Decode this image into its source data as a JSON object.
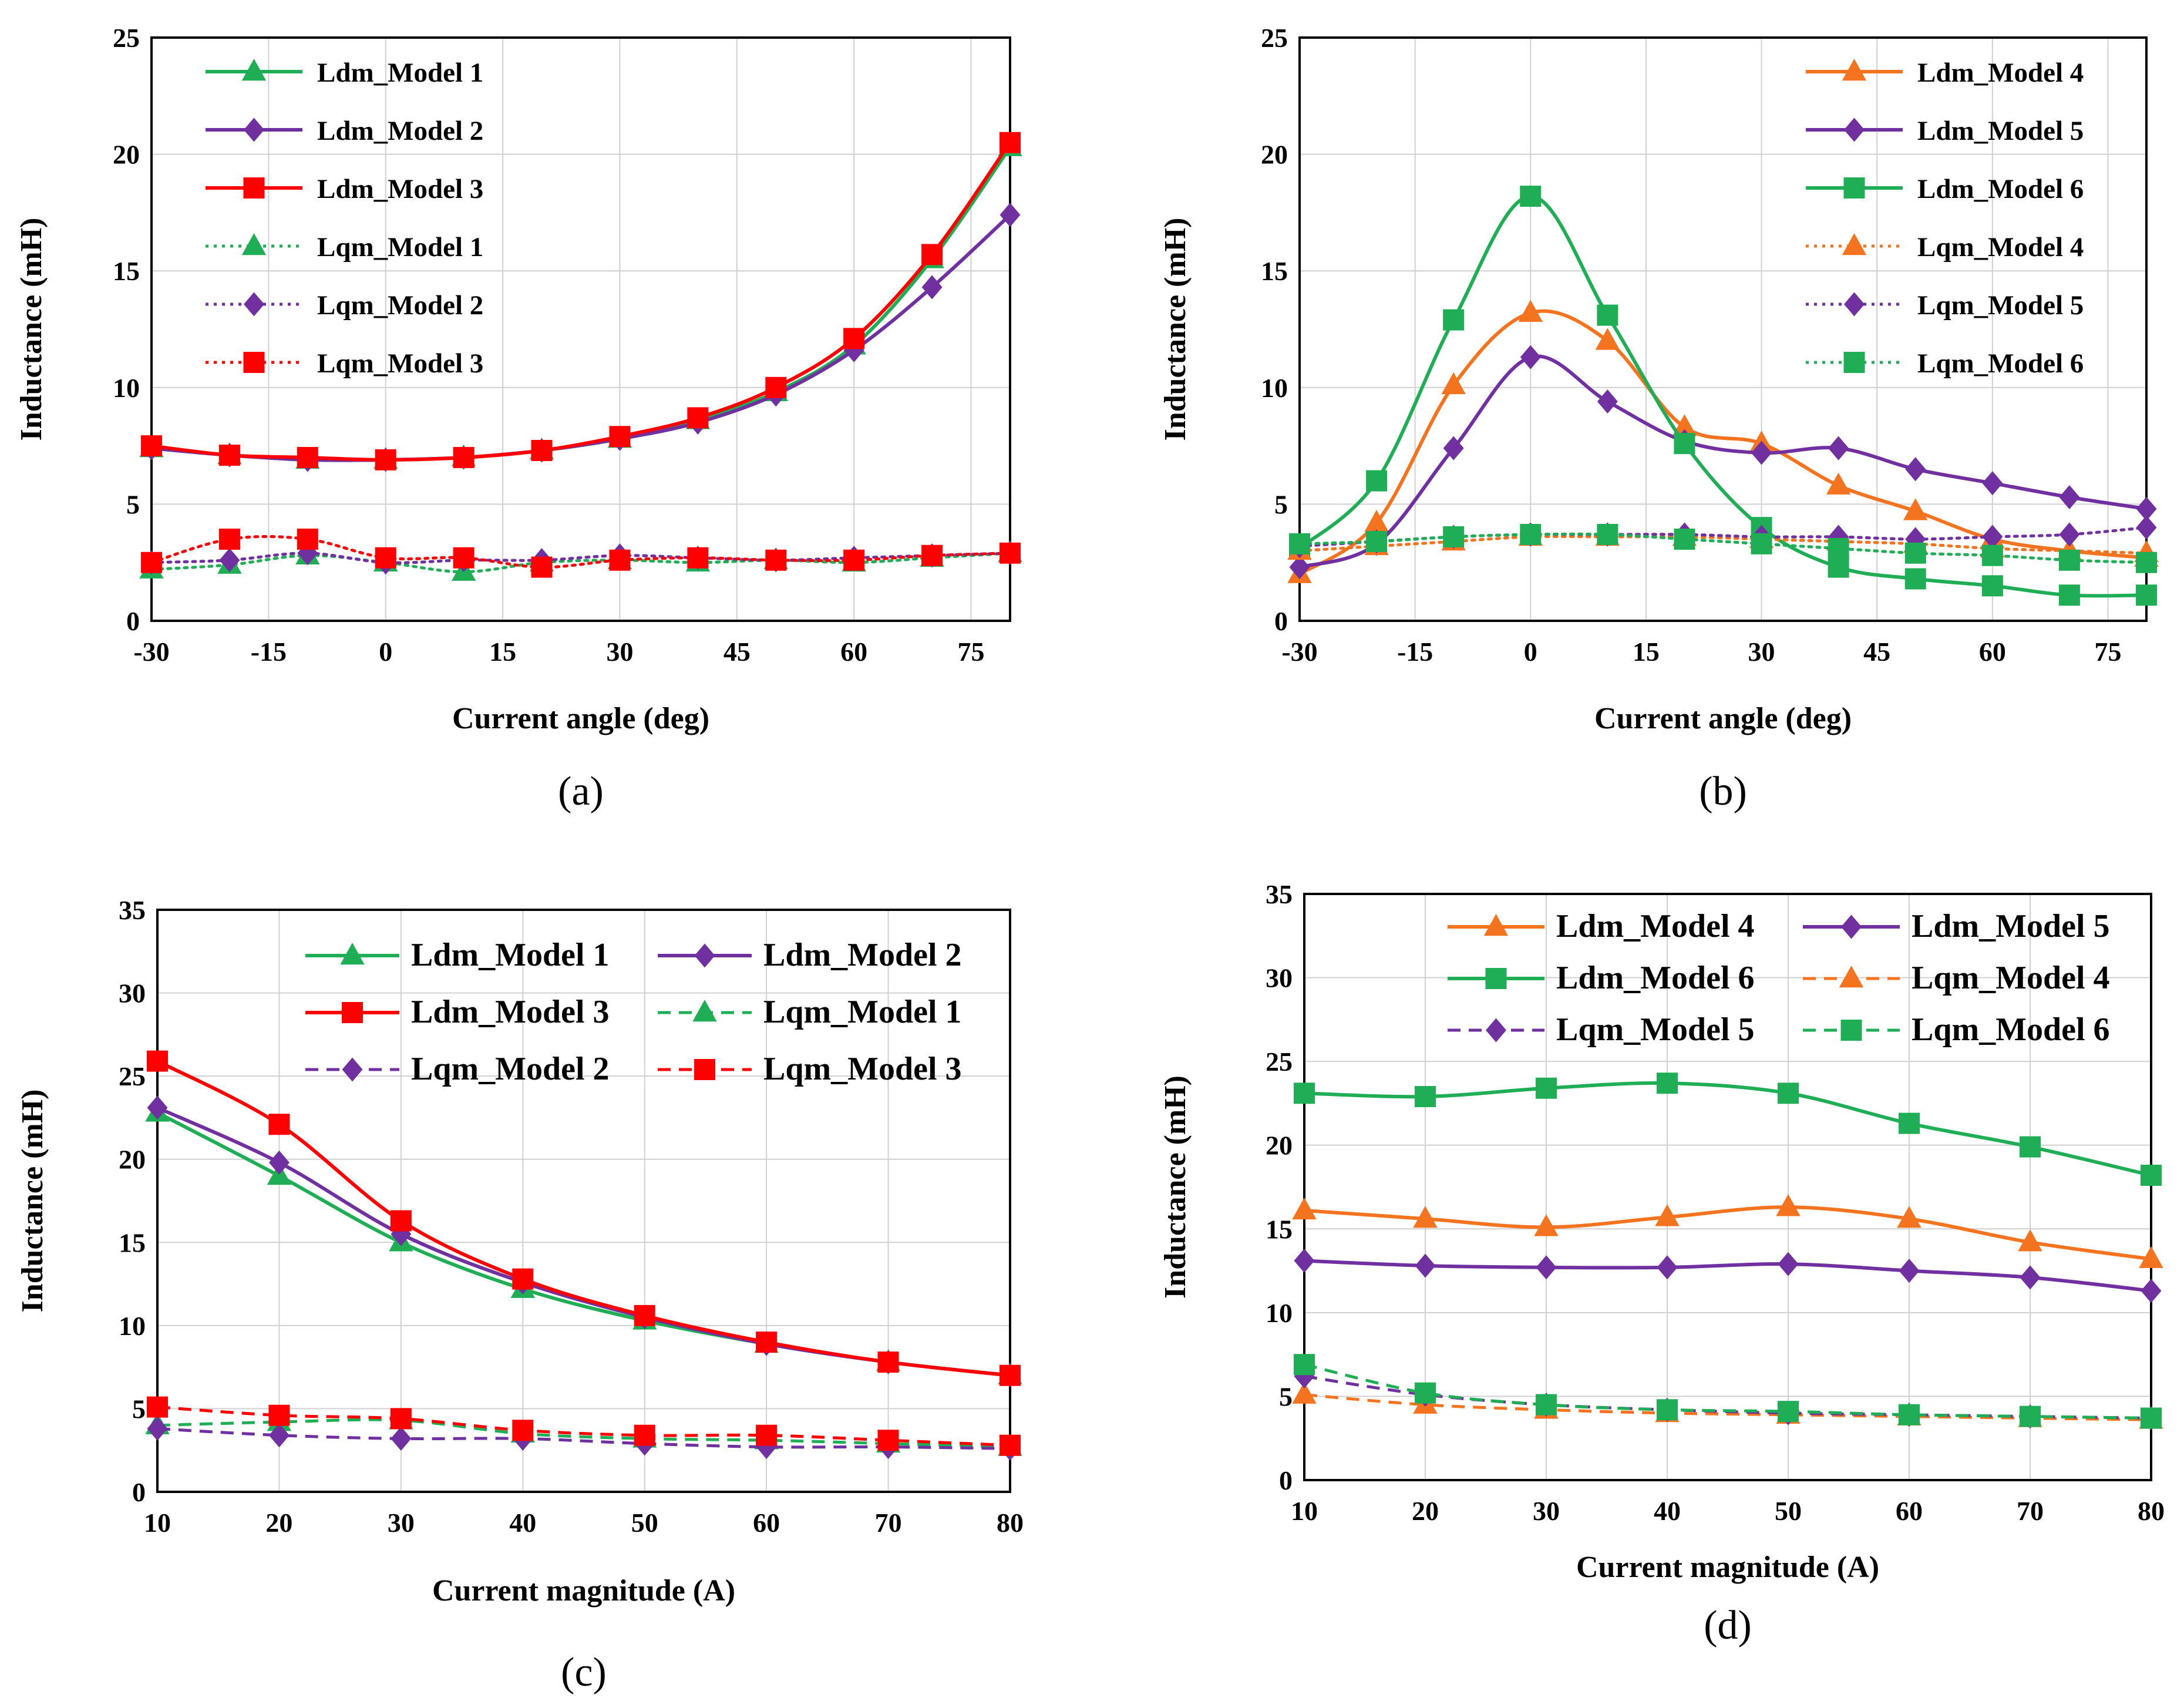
{
  "colors": {
    "green": "#1fae55",
    "purple": "#7030a0",
    "red": "#ff0000",
    "orange": "#f4731f",
    "grid": "#d0d0d0"
  },
  "chart_data": [
    {
      "id": "a",
      "type": "line",
      "panel_label": "(a)",
      "xlabel": "Current angle (deg)",
      "ylabel": "Inductance (mH)",
      "xlim": [
        -30,
        80
      ],
      "ylim": [
        0,
        25
      ],
      "xticks": [
        -30,
        -15,
        0,
        15,
        30,
        45,
        60,
        75
      ],
      "yticks": [
        0,
        5,
        10,
        15,
        20,
        25
      ],
      "legend_position": "top-left",
      "series": [
        {
          "name": "Ldm_Model 1",
          "color": "green",
          "marker": "triangle",
          "style": "solid",
          "x": [
            -30,
            -20,
            -10,
            0,
            10,
            20,
            30,
            40,
            50,
            60,
            70,
            80
          ],
          "y": [
            7.4,
            7.1,
            6.9,
            6.9,
            7.0,
            7.3,
            7.8,
            8.6,
            9.8,
            11.8,
            15.5,
            20.3
          ]
        },
        {
          "name": "Ldm_Model 2",
          "color": "purple",
          "marker": "diamond",
          "style": "solid",
          "x": [
            -30,
            -20,
            -10,
            0,
            10,
            20,
            30,
            40,
            50,
            60,
            70,
            80
          ],
          "y": [
            7.4,
            7.1,
            6.9,
            6.9,
            7.0,
            7.3,
            7.8,
            8.5,
            9.7,
            11.6,
            14.3,
            17.4
          ]
        },
        {
          "name": "Ldm_Model 3",
          "color": "red",
          "marker": "square",
          "style": "solid",
          "x": [
            -30,
            -20,
            -10,
            0,
            10,
            20,
            30,
            40,
            50,
            60,
            70,
            80
          ],
          "y": [
            7.5,
            7.1,
            7.0,
            6.9,
            7.0,
            7.3,
            7.9,
            8.7,
            10.0,
            12.1,
            15.7,
            20.5
          ]
        },
        {
          "name": "Lqm_Model 1",
          "color": "green",
          "marker": "triangle",
          "style": "dotted",
          "x": [
            -30,
            -20,
            -10,
            0,
            10,
            20,
            30,
            40,
            50,
            60,
            70,
            80
          ],
          "y": [
            2.2,
            2.4,
            2.8,
            2.5,
            2.1,
            2.5,
            2.6,
            2.5,
            2.6,
            2.5,
            2.7,
            2.9
          ]
        },
        {
          "name": "Lqm_Model 2",
          "color": "purple",
          "marker": "diamond",
          "style": "dotted",
          "x": [
            -30,
            -20,
            -10,
            0,
            10,
            20,
            30,
            40,
            50,
            60,
            70,
            80
          ],
          "y": [
            2.5,
            2.6,
            2.9,
            2.5,
            2.6,
            2.6,
            2.8,
            2.7,
            2.6,
            2.7,
            2.8,
            2.9
          ]
        },
        {
          "name": "Lqm_Model 3",
          "color": "red",
          "marker": "square",
          "style": "dotted",
          "x": [
            -30,
            -20,
            -10,
            0,
            10,
            20,
            30,
            40,
            50,
            60,
            70,
            80
          ],
          "y": [
            2.5,
            3.5,
            3.5,
            2.7,
            2.7,
            2.3,
            2.6,
            2.7,
            2.6,
            2.6,
            2.8,
            2.9
          ]
        }
      ]
    },
    {
      "id": "b",
      "type": "line",
      "panel_label": "(b)",
      "xlabel": "Current angle (deg)",
      "ylabel": "Inductance (mH)",
      "xlim": [
        -30,
        80
      ],
      "ylim": [
        0,
        25
      ],
      "xticks": [
        -30,
        -15,
        0,
        15,
        30,
        45,
        60,
        75
      ],
      "yticks": [
        0,
        5,
        10,
        15,
        20,
        25
      ],
      "legend_position": "top-right",
      "series": [
        {
          "name": "Ldm_Model 4",
          "color": "orange",
          "marker": "triangle",
          "style": "solid",
          "x": [
            -30,
            -20,
            -10,
            0,
            10,
            20,
            30,
            40,
            50,
            60,
            70,
            80
          ],
          "y": [
            2.0,
            4.2,
            10.1,
            13.2,
            12.0,
            8.3,
            7.6,
            5.8,
            4.7,
            3.5,
            3.0,
            2.7
          ]
        },
        {
          "name": "Ldm_Model 5",
          "color": "purple",
          "marker": "diamond",
          "style": "solid",
          "x": [
            -30,
            -20,
            -10,
            0,
            10,
            20,
            30,
            40,
            50,
            60,
            70,
            80
          ],
          "y": [
            2.3,
            3.3,
            7.4,
            11.3,
            9.4,
            7.7,
            7.2,
            7.4,
            6.5,
            5.9,
            5.3,
            4.8
          ]
        },
        {
          "name": "Ldm_Model 6",
          "color": "green",
          "marker": "square",
          "style": "solid",
          "x": [
            -30,
            -20,
            -10,
            0,
            10,
            20,
            30,
            40,
            50,
            60,
            70,
            80
          ],
          "y": [
            3.1,
            6.0,
            12.9,
            18.2,
            13.1,
            7.6,
            4.0,
            2.3,
            1.8,
            1.5,
            1.1,
            1.1
          ]
        },
        {
          "name": "Lqm_Model 4",
          "color": "orange",
          "marker": "triangle",
          "style": "dotted",
          "x": [
            -30,
            -20,
            -10,
            0,
            10,
            20,
            30,
            40,
            50,
            60,
            70,
            80
          ],
          "y": [
            3.0,
            3.2,
            3.4,
            3.6,
            3.6,
            3.6,
            3.5,
            3.4,
            3.3,
            3.1,
            3.0,
            2.9
          ]
        },
        {
          "name": "Lqm_Model 5",
          "color": "purple",
          "marker": "diamond",
          "style": "dotted",
          "x": [
            -30,
            -20,
            -10,
            0,
            10,
            20,
            30,
            40,
            50,
            60,
            70,
            80
          ],
          "y": [
            3.2,
            3.4,
            3.6,
            3.7,
            3.7,
            3.7,
            3.6,
            3.6,
            3.5,
            3.6,
            3.7,
            4.0
          ]
        },
        {
          "name": "Lqm_Model 6",
          "color": "green",
          "marker": "square",
          "style": "dotted",
          "x": [
            -30,
            -20,
            -10,
            0,
            10,
            20,
            30,
            40,
            50,
            60,
            70,
            80
          ],
          "y": [
            3.3,
            3.4,
            3.6,
            3.7,
            3.7,
            3.5,
            3.3,
            3.1,
            2.9,
            2.8,
            2.6,
            2.5
          ]
        }
      ]
    },
    {
      "id": "c",
      "type": "line",
      "panel_label": "(c)",
      "xlabel": "Current magnitude (A)",
      "ylabel": "Inductance (mH)",
      "xlim": [
        10,
        80
      ],
      "ylim": [
        0,
        35
      ],
      "xticks": [
        10,
        20,
        30,
        40,
        50,
        60,
        70,
        80
      ],
      "yticks": [
        0,
        5,
        10,
        15,
        20,
        25,
        30,
        35
      ],
      "legend_position": "top-right",
      "series": [
        {
          "name": "Ldm_Model 1",
          "color": "green",
          "marker": "triangle",
          "style": "solid",
          "x": [
            10,
            20,
            30,
            40,
            50,
            60,
            70,
            80
          ],
          "y": [
            22.8,
            19.0,
            15.0,
            12.2,
            10.3,
            8.9,
            7.8,
            7.0
          ]
        },
        {
          "name": "Ldm_Model 2",
          "color": "purple",
          "marker": "diamond",
          "style": "solid",
          "x": [
            10,
            20,
            30,
            40,
            50,
            60,
            70,
            80
          ],
          "y": [
            23.1,
            19.8,
            15.5,
            12.6,
            10.5,
            8.9,
            7.8,
            7.0
          ]
        },
        {
          "name": "Ldm_Model 3",
          "color": "red",
          "marker": "square",
          "style": "solid",
          "x": [
            10,
            20,
            30,
            40,
            50,
            60,
            70,
            80
          ],
          "y": [
            25.9,
            22.1,
            16.3,
            12.8,
            10.6,
            9.0,
            7.8,
            7.0
          ]
        },
        {
          "name": "Lqm_Model 1",
          "color": "green",
          "marker": "triangle",
          "style": "dashed",
          "x": [
            10,
            20,
            30,
            40,
            50,
            60,
            70,
            80
          ],
          "y": [
            4.0,
            4.2,
            4.3,
            3.5,
            3.2,
            3.1,
            2.9,
            2.7
          ]
        },
        {
          "name": "Lqm_Model 2",
          "color": "purple",
          "marker": "diamond",
          "style": "dashed",
          "x": [
            10,
            20,
            30,
            40,
            50,
            60,
            70,
            80
          ],
          "y": [
            3.8,
            3.4,
            3.2,
            3.2,
            2.9,
            2.7,
            2.7,
            2.6
          ]
        },
        {
          "name": "Lqm_Model 3",
          "color": "red",
          "marker": "square",
          "style": "dashed",
          "x": [
            10,
            20,
            30,
            40,
            50,
            60,
            70,
            80
          ],
          "y": [
            5.1,
            4.6,
            4.4,
            3.7,
            3.4,
            3.4,
            3.1,
            2.8
          ]
        }
      ]
    },
    {
      "id": "d",
      "type": "line",
      "panel_label": "(d)",
      "xlabel": "Current magnitude (A)",
      "ylabel": "Inductance (mH)",
      "xlim": [
        10,
        80
      ],
      "ylim": [
        0,
        35
      ],
      "xticks": [
        10,
        20,
        30,
        40,
        50,
        60,
        70,
        80
      ],
      "yticks": [
        0,
        5,
        10,
        15,
        20,
        25,
        30,
        35
      ],
      "legend_position": "top",
      "series": [
        {
          "name": "Ldm_Model 4",
          "color": "orange",
          "marker": "triangle",
          "style": "solid",
          "x": [
            10,
            20,
            30,
            40,
            50,
            60,
            70,
            80
          ],
          "y": [
            16.1,
            15.6,
            15.1,
            15.7,
            16.3,
            15.6,
            14.2,
            13.2
          ]
        },
        {
          "name": "Ldm_Model 5",
          "color": "purple",
          "marker": "diamond",
          "style": "solid",
          "x": [
            10,
            20,
            30,
            40,
            50,
            60,
            70,
            80
          ],
          "y": [
            13.1,
            12.8,
            12.7,
            12.7,
            12.9,
            12.5,
            12.1,
            11.3
          ]
        },
        {
          "name": "Ldm_Model 6",
          "color": "green",
          "marker": "square",
          "style": "solid",
          "x": [
            10,
            20,
            30,
            40,
            50,
            60,
            70,
            80
          ],
          "y": [
            23.1,
            22.9,
            23.4,
            23.7,
            23.1,
            21.3,
            19.9,
            18.2
          ]
        },
        {
          "name": "Lqm_Model 4",
          "color": "orange",
          "marker": "triangle",
          "style": "dashed",
          "x": [
            10,
            20,
            30,
            40,
            50,
            60,
            70,
            80
          ],
          "y": [
            5.1,
            4.5,
            4.2,
            4.0,
            3.9,
            3.8,
            3.7,
            3.6
          ]
        },
        {
          "name": "Lqm_Model 5",
          "color": "purple",
          "marker": "diamond",
          "style": "dashed",
          "x": [
            10,
            20,
            30,
            40,
            50,
            60,
            70,
            80
          ],
          "y": [
            6.2,
            5.1,
            4.5,
            4.2,
            4.0,
            3.9,
            3.8,
            3.7
          ]
        },
        {
          "name": "Lqm_Model 6",
          "color": "green",
          "marker": "square",
          "style": "dashed",
          "x": [
            10,
            20,
            30,
            40,
            50,
            60,
            70,
            80
          ],
          "y": [
            6.9,
            5.2,
            4.5,
            4.2,
            4.1,
            3.9,
            3.8,
            3.7
          ]
        }
      ]
    }
  ]
}
